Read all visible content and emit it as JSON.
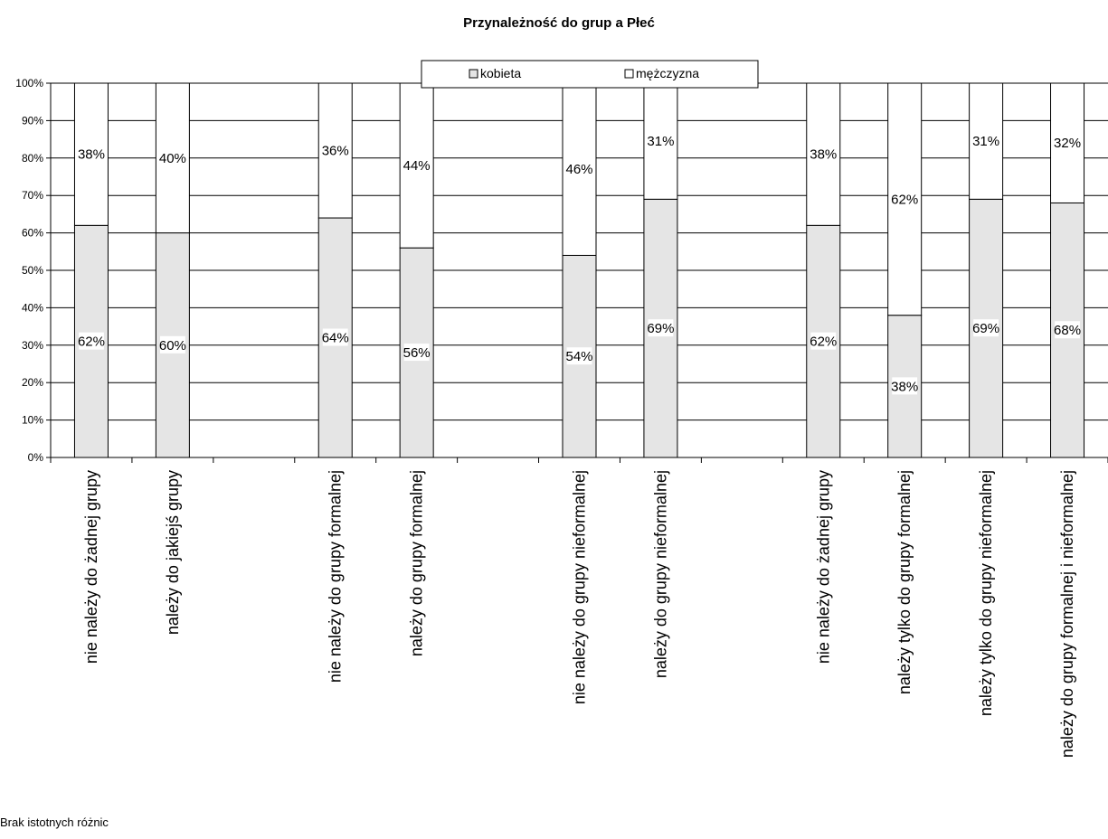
{
  "chart_data": {
    "type": "bar",
    "stacked": true,
    "title": "Przynależność do grup a Płeć",
    "categories": [
      "nie należy do żadnej grupy",
      "należy do jakiejś grupy",
      "",
      "nie należy do grupy formalnej",
      "należy do grupy formalnej",
      "",
      "nie należy do grupy nieformalnej",
      "należy do grupy nieformalnej",
      "",
      "nie należy do żadnej grupy",
      "należy tylko do grupy formalnej",
      "należy tylko do grupy nieformalnej",
      "należy do grupy formalnej i nieformalnej"
    ],
    "series": [
      {
        "name": "kobieta",
        "color": "#e5e5e5",
        "values": [
          62,
          60,
          null,
          64,
          56,
          null,
          54,
          69,
          null,
          62,
          38,
          69,
          68
        ]
      },
      {
        "name": "mężczyzna",
        "color": "#ffffff",
        "values": [
          38,
          40,
          null,
          36,
          44,
          null,
          46,
          31,
          null,
          38,
          62,
          31,
          32
        ]
      }
    ],
    "ylim": [
      0,
      100
    ],
    "yticks": [
      "0%",
      "10%",
      "20%",
      "30%",
      "40%",
      "50%",
      "60%",
      "70%",
      "80%",
      "90%",
      "100%"
    ],
    "grid": true,
    "legend_position": "top"
  },
  "note": "Brak istotnych różnic"
}
